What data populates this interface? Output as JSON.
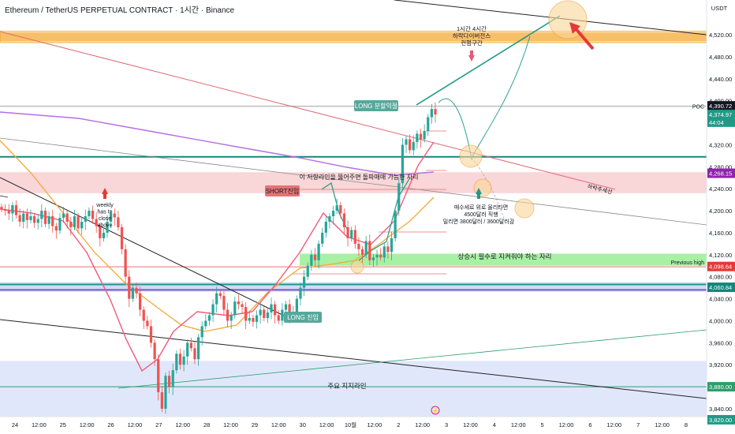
{
  "header": {
    "title": "Ethereum / TetherUS PERPETUAL CONTRACT · 1시간 · Binance",
    "currency": "USDT"
  },
  "colors": {
    "up": "#26a69a",
    "down": "#ef5350",
    "resistance_band": "#f6b44e",
    "red_zone": "#f7c5c7",
    "green_zone": "#9ef09a",
    "blue_zone": "#c9d3f7",
    "accent_teal": "#1f9a87",
    "ema_orange": "#f7a731",
    "ema_pink": "#ef5b7b",
    "ma_purple": "#b86ee0"
  },
  "chart_data": {
    "type": "candlestick",
    "ylim": [
      3810,
      4560
    ],
    "y_ticks": [
      "4,520.00",
      "4,480.00",
      "4,440.00",
      "4,400.00",
      "4,360.00",
      "4,320.00",
      "4,280.00",
      "4,240.00",
      "4,200.00",
      "4,160.00",
      "4,120.00",
      "4,080.00",
      "4,040.00",
      "4,000.00",
      "3,960.00",
      "3,920.00",
      "3,880.00",
      "3,840.00"
    ],
    "y_tick_values": [
      4520,
      4480,
      4440,
      4400,
      4360,
      4320,
      4280,
      4240,
      4200,
      4160,
      4120,
      4080,
      4040,
      4000,
      3960,
      3920,
      3880,
      3840
    ],
    "x_ticks": [
      "24",
      "12:00",
      "25",
      "12:00",
      "26",
      "12:00",
      "27",
      "12:00",
      "28",
      "12:00",
      "29",
      "12:00",
      "30",
      "12:00",
      "10월",
      "12:00",
      "2",
      "12:00",
      "3",
      "12:00",
      "4",
      "12:00",
      "5",
      "12:00",
      "6",
      "12:00",
      "7",
      "12:00",
      "8"
    ],
    "x_tick_hours": [
      0,
      12,
      24,
      36,
      48,
      60,
      72,
      84,
      96,
      108,
      120,
      132,
      144,
      156,
      168,
      180,
      192,
      204,
      216,
      228,
      240,
      252,
      264,
      276,
      288,
      300,
      312,
      324,
      336
    ],
    "x_range_hours": [
      -6,
      336
    ],
    "price_labels": [
      {
        "text": "4,390.72",
        "value": 4390.72,
        "style": "dark"
      },
      {
        "text": "4,374.97",
        "value": 4374.97,
        "style": "teal"
      },
      {
        "text": "44:04",
        "value": 4361,
        "style": "teal"
      },
      {
        "text": "4,268.15",
        "value": 4268.15,
        "style": "purple"
      },
      {
        "text": "4,098.64",
        "value": 4098.64,
        "style": "red"
      },
      {
        "text": "4,060.84",
        "value": 4060.84,
        "style": "green"
      },
      {
        "text": "3,880.00",
        "value": 3880,
        "style": "greenline"
      },
      {
        "text": "3,820.00",
        "value": 3820,
        "style": "teal"
      }
    ],
    "levels": [
      {
        "name": "POC",
        "value": 4390,
        "label": "POC"
      },
      {
        "name": "Previous high",
        "value": 4098,
        "label": "Previous high"
      },
      {
        "name": "teal support",
        "value": 4298
      },
      {
        "name": "3880 line",
        "value": 3880
      }
    ],
    "zones": [
      {
        "name": "orange resistance",
        "from": 4508,
        "to": 4524
      },
      {
        "name": "red zone",
        "from": 4232,
        "to": 4270
      },
      {
        "name": "green zone",
        "from": 4100,
        "to": 4122
      },
      {
        "name": "purple band",
        "from": 4053,
        "to": 4070
      },
      {
        "name": "blue zone",
        "from": 3818,
        "to": 3927
      }
    ],
    "candles_close": [
      4203,
      4200,
      4195,
      4210,
      4192,
      4180,
      4195,
      4183,
      4190,
      4178,
      4185,
      4200,
      4176,
      4190,
      4172,
      4164,
      4187,
      4195,
      4180,
      4170,
      4190,
      4168,
      4180,
      4190,
      4200,
      4185,
      4172,
      4150,
      4160,
      4180,
      4195,
      4188,
      4170,
      4130,
      4080,
      4040,
      4060,
      4050,
      4020,
      4000,
      3990,
      3960,
      3930,
      3870,
      3840,
      3900,
      3880,
      3910,
      3940,
      3920,
      3935,
      3960,
      3950,
      3930,
      3970,
      3990,
      4000,
      4010,
      4030,
      4050,
      4045,
      4020,
      4000,
      4010,
      4035,
      4030,
      4025,
      4000,
      4005,
      3998,
      4010,
      4020,
      4005,
      4015,
      4030,
      4010,
      4000,
      4020,
      4030,
      4010,
      4015,
      4040,
      4060,
      4080,
      4100,
      4120,
      4110,
      4140,
      4160,
      4180,
      4190,
      4200,
      4210,
      4195,
      4170,
      4150,
      4165,
      4140,
      4130,
      4120,
      4145,
      4110,
      4115,
      4120,
      4115,
      4135,
      4125,
      4150,
      4200,
      4250,
      4320,
      4330,
      4310,
      4325,
      4340,
      4330,
      4345,
      4370,
      4385,
      4375
    ],
    "annotations": [
      "1시간 4시간",
      "하락다이버전스",
      "컨펌구간",
      "LONG 분할익절",
      "이 저항라인을 뚫어주면 돌파매매 가능한 자리",
      "SHORT진입",
      "weekly has to close above",
      "매수세로 위로 올리타면 4500달러 직행 밀리면 3800달러 / 3600달러감",
      "상승시 필수로 지켜줘야 하는 자리",
      "Previous high",
      "LONG 진입",
      "주요 지지라인",
      "하락추세선"
    ]
  }
}
